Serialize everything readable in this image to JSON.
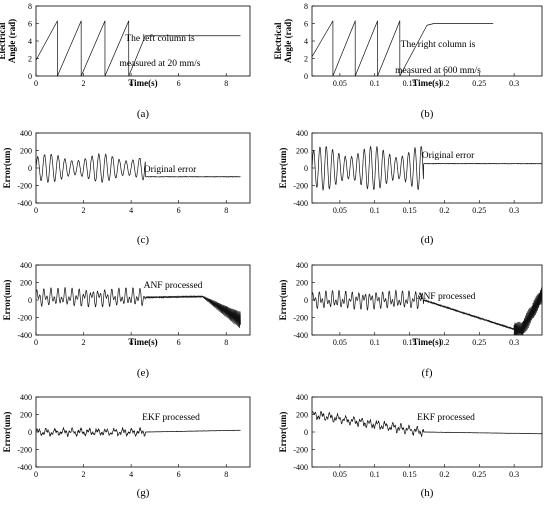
{
  "chart_data": [
    {
      "panel": "a",
      "caption": "(a)",
      "type": "line",
      "ylabel": "Electrical Angle (rad)",
      "xlabel": "Time(s)",
      "xlim": [
        0,
        9
      ],
      "ylim": [
        0,
        8
      ],
      "xticks": [
        "0",
        "2",
        "4",
        "6",
        "8"
      ],
      "yticks": [
        "8",
        "6",
        "4",
        "2",
        "0"
      ],
      "annotation": [
        "The left column is",
        "measured at 20 mm/s"
      ],
      "signal": "sawtooth",
      "series": [
        {
          "x": [
            0,
            0.9,
            0.9,
            1.9,
            1.9,
            2.9,
            2.9,
            3.9,
            3.9,
            4.6,
            4.6,
            8.6
          ],
          "y": [
            1.8,
            6.3,
            0.0,
            6.3,
            0.0,
            6.3,
            0.0,
            6.3,
            0.0,
            4.6,
            4.6,
            4.6
          ]
        }
      ]
    },
    {
      "panel": "b",
      "caption": "(b)",
      "type": "line",
      "ylabel": "Electrical Angle (rad)",
      "xlabel": "Time(s)",
      "xlim": [
        0.01,
        0.34
      ],
      "ylim": [
        0,
        8
      ],
      "xticks": [
        "0.05",
        "0.1",
        "0.15",
        "0.2",
        "0.25",
        "0.3"
      ],
      "yticks": [
        "8",
        "6",
        "4",
        "2",
        "0"
      ],
      "annotation": [
        "The right column is",
        "measured at 600 mm/s"
      ],
      "signal": "sawtooth",
      "series": [
        {
          "x": [
            0.01,
            0.04,
            0.04,
            0.072,
            0.072,
            0.104,
            0.104,
            0.136,
            0.136,
            0.175,
            0.185,
            0.27
          ],
          "y": [
            2.2,
            6.3,
            0.0,
            6.3,
            0.0,
            6.3,
            0.0,
            6.3,
            0.0,
            5.8,
            6.0,
            6.0
          ]
        }
      ]
    },
    {
      "panel": "c",
      "caption": "(c)",
      "type": "line",
      "ylabel": "Error(um)",
      "xlabel": "",
      "xlim": [
        0,
        9
      ],
      "ylim": [
        -400,
        400
      ],
      "xticks": [
        "0",
        "2",
        "4",
        "6",
        "8"
      ],
      "yticks": [
        "400",
        "200",
        "0",
        "-200",
        "-400"
      ],
      "annotation": [
        "Original error"
      ],
      "signal": "oscillation",
      "series": [
        {
          "x": [
            0,
            4.6,
            8.6
          ],
          "y": [
            0,
            0,
            -100
          ],
          "amplitude": 160,
          "cycles_per_unit": 3.5,
          "damped_level": -100
        }
      ]
    },
    {
      "panel": "d",
      "caption": "(d)",
      "type": "line",
      "ylabel": "Error(um)",
      "xlabel": "",
      "xlim": [
        0.01,
        0.34
      ],
      "ylim": [
        -400,
        400
      ],
      "xticks": [
        "0.05",
        "0.1",
        "0.15",
        "0.2",
        "0.25",
        "0.3"
      ],
      "yticks": [
        "400",
        "200",
        "0",
        "-200",
        "-400"
      ],
      "annotation": [
        "Original error"
      ],
      "signal": "oscillation",
      "series": [
        {
          "x": [
            0.01,
            0.17,
            0.34
          ],
          "y": [
            0,
            0,
            50
          ],
          "amplitude": 250,
          "cycles_per_unit": 110,
          "damped_level": 50
        }
      ]
    },
    {
      "panel": "e",
      "caption": "(e)",
      "type": "line",
      "ylabel": "Error(um)",
      "xlabel": "Time(s)",
      "xlim": [
        0,
        9
      ],
      "ylim": [
        -400,
        400
      ],
      "xticks": [
        "0",
        "2",
        "4",
        "6",
        "8"
      ],
      "yticks": [
        "400",
        "200",
        "0",
        "-200",
        "-400"
      ],
      "annotation": [
        "ANF processed"
      ],
      "signal": "anf",
      "series": [
        {
          "x": [
            0,
            4.6,
            7.0,
            8.6
          ],
          "y": [
            30,
            30,
            40,
            -230
          ],
          "amplitude": 110,
          "cycles_per_unit": 3.5
        }
      ]
    },
    {
      "panel": "f",
      "caption": "(f)",
      "type": "line",
      "ylabel": "Error(um)",
      "xlabel": "Time(s)",
      "xlim": [
        0.01,
        0.34
      ],
      "ylim": [
        -400,
        400
      ],
      "xticks": [
        "0.05",
        "0.1",
        "0.15",
        "0.2",
        "0.25",
        "0.3"
      ],
      "yticks": [
        "400",
        "200",
        "0",
        "-200",
        "-400"
      ],
      "annotation": [
        "ANF processed"
      ],
      "signal": "anf",
      "series": [
        {
          "x": [
            0.01,
            0.17,
            0.31,
            0.34
          ],
          "y": [
            0,
            0,
            -360,
            60
          ],
          "amplitude": 110,
          "cycles_per_unit": 110
        }
      ]
    },
    {
      "panel": "g",
      "caption": "(g)",
      "type": "line",
      "ylabel": "Error(um)",
      "xlabel": "",
      "xlim": [
        0,
        9
      ],
      "ylim": [
        -400,
        400
      ],
      "xticks": [
        "0",
        "2",
        "4",
        "6",
        "8"
      ],
      "yticks": [
        "400",
        "200",
        "0",
        "-200",
        "-400"
      ],
      "annotation": [
        "EKF processed"
      ],
      "signal": "noise",
      "series": [
        {
          "x": [
            0,
            4.6,
            8.6
          ],
          "y": [
            0,
            0,
            20
          ],
          "amplitude": 50,
          "cycles_per_unit": 3.5
        }
      ]
    },
    {
      "panel": "h",
      "caption": "(h)",
      "type": "line",
      "ylabel": "Error(um)",
      "xlabel": "",
      "xlim": [
        0.01,
        0.34
      ],
      "ylim": [
        -400,
        400
      ],
      "xticks": [
        "0.05",
        "0.1",
        "0.15",
        "0.2",
        "0.25",
        "0.3"
      ],
      "yticks": [
        "400",
        "200",
        "0",
        "-200",
        "-400"
      ],
      "annotation": [
        "EKF processed"
      ],
      "signal": "noise",
      "series": [
        {
          "x": [
            0.01,
            0.17,
            0.34
          ],
          "y": [
            200,
            0,
            -20
          ],
          "amplitude": 60,
          "cycles_per_unit": 110
        }
      ]
    }
  ]
}
